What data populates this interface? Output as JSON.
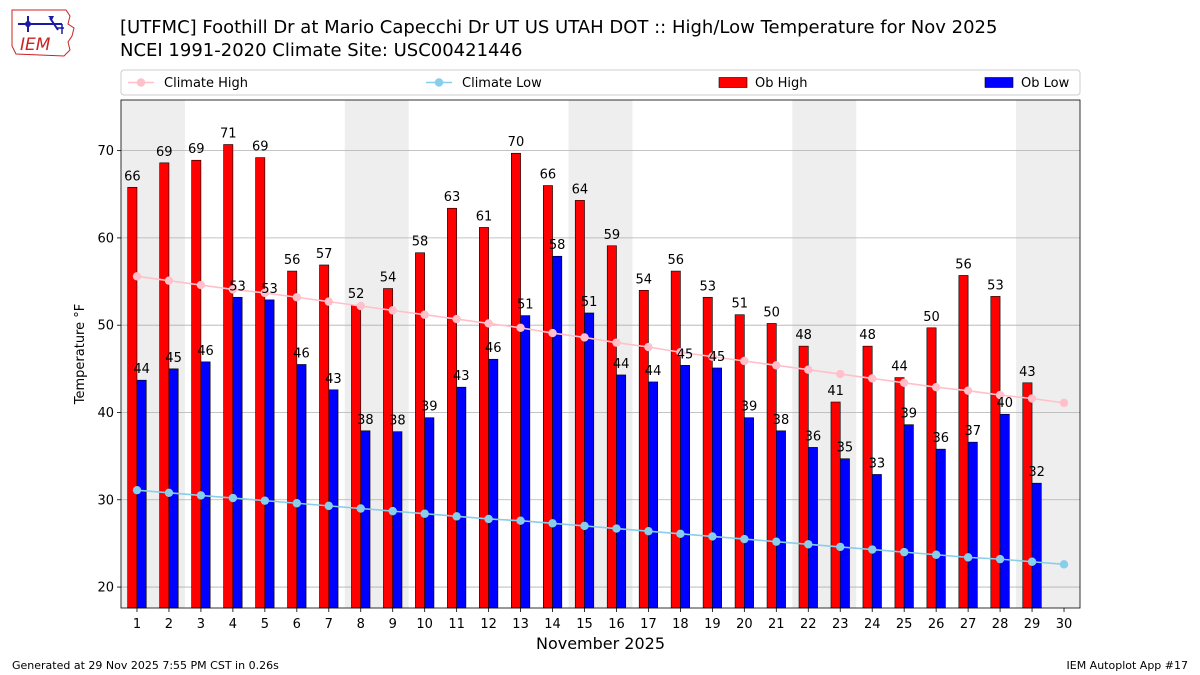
{
  "header": {
    "title_line1": "[UTFMC] Foothill Dr at Mario Capecchi Dr UT US UTAH DOT :: High/Low Temperature for Nov 2025",
    "title_line2": "NCEI 1991-2020 Climate Site: USC00421446",
    "logo_text": "IEM"
  },
  "footer": {
    "left": "Generated at 29 Nov 2025 7:55 PM CST in 0.26s",
    "right": "IEM Autoplot App #17"
  },
  "colors": {
    "ob_high": "#ff0000",
    "ob_low": "#0000ff",
    "climate_high": "#ffc0cb",
    "climate_low": "#87ceeb",
    "weekend_shade": "#eeeeee",
    "logo_red": "#cc2222",
    "logo_blue": "#1a1aa6"
  },
  "chart_data": {
    "type": "bar",
    "xlabel": "November 2025",
    "ylabel": "Temperature °F",
    "xlim": [
      0.5,
      30.5
    ],
    "ylim": [
      17.6,
      75.8
    ],
    "yticks": [
      20,
      30,
      40,
      50,
      60,
      70
    ],
    "grid": "horizontal",
    "legend_placement": "top",
    "shaded_days": [
      1,
      8,
      15,
      22,
      29
    ],
    "x": [
      1,
      2,
      3,
      4,
      5,
      6,
      7,
      8,
      9,
      10,
      11,
      12,
      13,
      14,
      15,
      16,
      17,
      18,
      19,
      20,
      21,
      22,
      23,
      24,
      25,
      26,
      27,
      28,
      29,
      30
    ],
    "series": [
      {
        "name": "Climate High",
        "kind": "line",
        "values": [
          55.6,
          55.1,
          54.6,
          54.1,
          53.7,
          53.2,
          52.7,
          52.2,
          51.7,
          51.2,
          50.7,
          50.2,
          49.7,
          49.1,
          48.6,
          48.0,
          47.5,
          46.9,
          46.4,
          45.9,
          45.4,
          44.9,
          44.4,
          43.9,
          43.4,
          42.9,
          42.5,
          42.0,
          41.6,
          41.1
        ]
      },
      {
        "name": "Climate Low",
        "kind": "line",
        "values": [
          31.1,
          30.8,
          30.5,
          30.2,
          29.9,
          29.6,
          29.3,
          29.0,
          28.7,
          28.4,
          28.1,
          27.8,
          27.6,
          27.3,
          27.0,
          26.7,
          26.4,
          26.1,
          25.8,
          25.5,
          25.2,
          24.9,
          24.6,
          24.3,
          24.0,
          23.7,
          23.4,
          23.2,
          22.9,
          22.6
        ]
      },
      {
        "name": "Ob High",
        "kind": "bar",
        "values": [
          65.8,
          68.6,
          68.9,
          70.7,
          69.2,
          56.2,
          56.9,
          52.3,
          54.2,
          58.3,
          63.4,
          61.2,
          69.7,
          66.0,
          64.3,
          59.1,
          54.0,
          56.2,
          53.2,
          51.2,
          50.2,
          47.6,
          41.2,
          47.6,
          44.0,
          49.7,
          55.7,
          53.3,
          43.4,
          null
        ],
        "labels": [
          "66",
          "69",
          "69",
          "71",
          "69",
          "56",
          "57",
          "52",
          "54",
          "58",
          "63",
          "61",
          "70",
          "66",
          "64",
          "59",
          "54",
          "56",
          "53",
          "51",
          "50",
          "48",
          "41",
          "48",
          "44",
          "50",
          "56",
          "53",
          "43",
          ""
        ]
      },
      {
        "name": "Ob Low",
        "kind": "bar",
        "values": [
          43.7,
          45.0,
          45.8,
          53.2,
          52.9,
          45.5,
          42.6,
          37.9,
          37.8,
          39.4,
          42.9,
          46.1,
          51.1,
          57.9,
          51.4,
          44.3,
          43.5,
          45.4,
          45.1,
          39.4,
          37.9,
          36.0,
          34.7,
          32.9,
          38.6,
          35.8,
          36.6,
          39.8,
          31.9,
          null
        ],
        "labels": [
          "44",
          "45",
          "46",
          "53",
          "53",
          "46",
          "43",
          "38",
          "38",
          "39",
          "43",
          "46",
          "51",
          "58",
          "51",
          "44",
          "44",
          "45",
          "45",
          "39",
          "38",
          "36",
          "35",
          "33",
          "39",
          "36",
          "37",
          "40",
          "32",
          ""
        ]
      }
    ]
  }
}
